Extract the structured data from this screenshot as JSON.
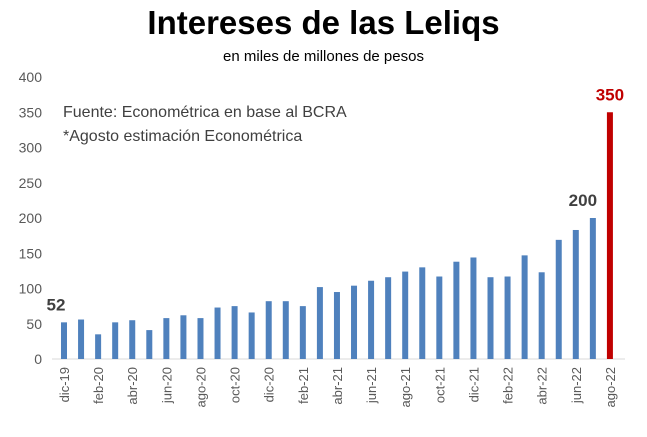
{
  "chart_data": {
    "type": "bar",
    "title": "Intereses de las Leliqs",
    "subtitle": "en miles de millones de pesos",
    "annotations": [
      "Fuente: Econométrica en base al BCRA",
      "*Agosto estimación Econométrica"
    ],
    "xlabel": "",
    "ylabel": "",
    "ylim": [
      0,
      400
    ],
    "yticks": [
      0,
      50,
      100,
      150,
      200,
      250,
      300,
      350,
      400
    ],
    "grid": false,
    "categories": [
      "dic-19",
      "ene-20",
      "feb-20",
      "mar-20",
      "abr-20",
      "may-20",
      "jun-20",
      "jul-20",
      "ago-20",
      "sep-20",
      "oct-20",
      "nov-20",
      "dic-20",
      "ene-21",
      "feb-21",
      "mar-21",
      "abr-21",
      "may-21",
      "jun-21",
      "jul-21",
      "ago-21",
      "sep-21",
      "oct-21",
      "nov-21",
      "dic-21",
      "ene-22",
      "feb-22",
      "mar-22",
      "abr-22",
      "may-22",
      "jun-22",
      "jul-22",
      "ago-22"
    ],
    "xtick_labels": [
      "dic-19",
      "feb-20",
      "abr-20",
      "jun-20",
      "ago-20",
      "oct-20",
      "dic-20",
      "feb-21",
      "abr-21",
      "jun-21",
      "ago-21",
      "oct-21",
      "dic-21",
      "feb-22",
      "abr-22",
      "jun-22",
      "ago-22"
    ],
    "values": [
      52,
      56,
      35,
      52,
      55,
      41,
      58,
      62,
      58,
      73,
      75,
      66,
      82,
      82,
      75,
      102,
      95,
      104,
      111,
      116,
      124,
      130,
      117,
      138,
      144,
      116,
      117,
      147,
      123,
      169,
      183,
      200,
      350
    ],
    "data_labels": [
      {
        "index": 0,
        "text": "52"
      },
      {
        "index": 31,
        "text": "200"
      },
      {
        "index": 32,
        "text": "350"
      }
    ],
    "colors": {
      "bar": "#4f81bd",
      "highlight": "#c00000",
      "label": "#404040"
    },
    "highlight_index": 32
  }
}
